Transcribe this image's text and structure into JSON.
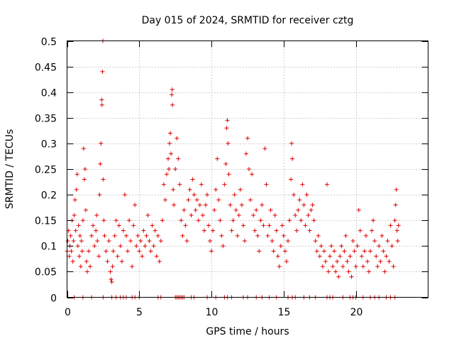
{
  "chart_data": {
    "type": "scatter",
    "title": "Day 015 of 2024, SRMTID for receiver cztg",
    "xlabel": "GPS time / hours",
    "ylabel": "SRMTID / TECUs",
    "xlim": [
      0,
      25
    ],
    "ylim": [
      0,
      0.5
    ],
    "xticks": [
      0,
      5,
      10,
      15,
      20
    ],
    "xtick_labels": [
      "0",
      "5",
      "10",
      "15",
      "20"
    ],
    "yticks": [
      0,
      0.05,
      0.1,
      0.15,
      0.2,
      0.25,
      0.3,
      0.35,
      0.4,
      0.45,
      0.5
    ],
    "ytick_labels": [
      "0",
      "0.05",
      "0.1",
      "0.15",
      "0.2",
      "0.25",
      "0.3",
      "0.35",
      "0.4",
      "0.45",
      "0.5"
    ],
    "grid": true,
    "marker": "plus",
    "color": "#e00000",
    "series": [
      {
        "name": "SRMTID",
        "points": [
          [
            0.0,
            0.09
          ],
          [
            0.05,
            0.11
          ],
          [
            0.1,
            0.13
          ],
          [
            0.15,
            0.08
          ],
          [
            0.2,
            0.1
          ],
          [
            0.25,
            0.12
          ],
          [
            0.3,
            0.09
          ],
          [
            0.35,
            0.15
          ],
          [
            0.4,
            0.07
          ],
          [
            0.45,
            0.11
          ],
          [
            0.5,
            0.16
          ],
          [
            0.55,
            0.19
          ],
          [
            0.6,
            0.13
          ],
          [
            0.65,
            0.21
          ],
          [
            0.7,
            0.24
          ],
          [
            0.75,
            0.1
          ],
          [
            0.8,
            0.14
          ],
          [
            0.85,
            0.08
          ],
          [
            0.9,
            0.12
          ],
          [
            0.95,
            0.06
          ],
          [
            1.0,
            0.11
          ],
          [
            1.05,
            0.09
          ],
          [
            1.1,
            0.15
          ],
          [
            1.15,
            0.29
          ],
          [
            1.2,
            0.23
          ],
          [
            1.25,
            0.25
          ],
          [
            1.3,
            0.17
          ],
          [
            1.35,
            0.07
          ],
          [
            1.4,
            0.05
          ],
          [
            1.5,
            0.09
          ],
          [
            1.6,
            0.06
          ],
          [
            1.7,
            0.12
          ],
          [
            1.8,
            0.14
          ],
          [
            1.9,
            0.1
          ],
          [
            2.0,
            0.13
          ],
          [
            2.05,
            0.16
          ],
          [
            2.1,
            0.11
          ],
          [
            2.2,
            0.08
          ],
          [
            2.25,
            0.2
          ],
          [
            2.3,
            0.26
          ],
          [
            2.35,
            0.3
          ],
          [
            2.4,
            0.385
          ],
          [
            2.42,
            0.375
          ],
          [
            2.45,
            0.44
          ],
          [
            2.48,
            0.5
          ],
          [
            2.5,
            0.23
          ],
          [
            2.55,
            0.15
          ],
          [
            2.6,
            0.12
          ],
          [
            2.7,
            0.09
          ],
          [
            2.8,
            0.07
          ],
          [
            2.9,
            0.11
          ],
          [
            3.0,
            0.05
          ],
          [
            3.05,
            0.035
          ],
          [
            3.1,
            0.03
          ],
          [
            3.15,
            0.06
          ],
          [
            3.2,
            0.09
          ],
          [
            3.3,
            0.12
          ],
          [
            3.4,
            0.15
          ],
          [
            3.5,
            0.08
          ],
          [
            3.6,
            0.14
          ],
          [
            3.7,
            0.1
          ],
          [
            3.8,
            0.07
          ],
          [
            3.9,
            0.13
          ],
          [
            4.0,
            0.2
          ],
          [
            4.1,
            0.12
          ],
          [
            4.2,
            0.09
          ],
          [
            4.3,
            0.15
          ],
          [
            4.4,
            0.11
          ],
          [
            4.5,
            0.06
          ],
          [
            4.6,
            0.14
          ],
          [
            4.7,
            0.18
          ],
          [
            4.8,
            0.1
          ],
          [
            4.9,
            0.12
          ],
          [
            5.0,
            0.09
          ],
          [
            5.1,
            0.11
          ],
          [
            5.2,
            0.08
          ],
          [
            5.3,
            0.13
          ],
          [
            5.4,
            0.1
          ],
          [
            5.5,
            0.12
          ],
          [
            5.6,
            0.16
          ],
          [
            5.7,
            0.11
          ],
          [
            5.8,
            0.09
          ],
          [
            5.9,
            0.14
          ],
          [
            6.0,
            0.1
          ],
          [
            6.1,
            0.13
          ],
          [
            6.2,
            0.08
          ],
          [
            6.3,
            0.12
          ],
          [
            6.4,
            0.07
          ],
          [
            6.5,
            0.11
          ],
          [
            6.6,
            0.15
          ],
          [
            6.7,
            0.22
          ],
          [
            6.8,
            0.19
          ],
          [
            6.9,
            0.24
          ],
          [
            7.0,
            0.27
          ],
          [
            7.05,
            0.25
          ],
          [
            7.1,
            0.3
          ],
          [
            7.15,
            0.32
          ],
          [
            7.2,
            0.28
          ],
          [
            7.25,
            0.395
          ],
          [
            7.28,
            0.405
          ],
          [
            7.3,
            0.375
          ],
          [
            7.35,
            0.21
          ],
          [
            7.4,
            0.18
          ],
          [
            7.5,
            0.25
          ],
          [
            7.6,
            0.31
          ],
          [
            7.7,
            0.27
          ],
          [
            7.8,
            0.22
          ],
          [
            7.9,
            0.15
          ],
          [
            8.0,
            0.12
          ],
          [
            8.1,
            0.17
          ],
          [
            8.2,
            0.14
          ],
          [
            8.3,
            0.11
          ],
          [
            8.4,
            0.19
          ],
          [
            8.5,
            0.21
          ],
          [
            8.6,
            0.16
          ],
          [
            8.7,
            0.23
          ],
          [
            8.8,
            0.2
          ],
          [
            8.9,
            0.17
          ],
          [
            9.0,
            0.19
          ],
          [
            9.1,
            0.15
          ],
          [
            9.2,
            0.18
          ],
          [
            9.3,
            0.22
          ],
          [
            9.4,
            0.16
          ],
          [
            9.5,
            0.13
          ],
          [
            9.6,
            0.18
          ],
          [
            9.7,
            0.2
          ],
          [
            9.8,
            0.14
          ],
          [
            9.9,
            0.11
          ],
          [
            10.0,
            0.09
          ],
          [
            10.1,
            0.13
          ],
          [
            10.2,
            0.17
          ],
          [
            10.3,
            0.21
          ],
          [
            10.4,
            0.27
          ],
          [
            10.5,
            0.19
          ],
          [
            10.6,
            0.15
          ],
          [
            10.7,
            0.12
          ],
          [
            10.8,
            0.1
          ],
          [
            10.9,
            0.22
          ],
          [
            11.0,
            0.26
          ],
          [
            11.05,
            0.33
          ],
          [
            11.1,
            0.345
          ],
          [
            11.15,
            0.3
          ],
          [
            11.2,
            0.24
          ],
          [
            11.3,
            0.18
          ],
          [
            11.4,
            0.13
          ],
          [
            11.5,
            0.15
          ],
          [
            11.6,
            0.2
          ],
          [
            11.7,
            0.17
          ],
          [
            11.8,
            0.12
          ],
          [
            11.9,
            0.16
          ],
          [
            12.0,
            0.21
          ],
          [
            12.1,
            0.18
          ],
          [
            12.2,
            0.14
          ],
          [
            12.3,
            0.11
          ],
          [
            12.4,
            0.28
          ],
          [
            12.5,
            0.31
          ],
          [
            12.6,
            0.25
          ],
          [
            12.7,
            0.19
          ],
          [
            12.8,
            0.24
          ],
          [
            12.9,
            0.16
          ],
          [
            13.0,
            0.13
          ],
          [
            13.1,
            0.17
          ],
          [
            13.2,
            0.12
          ],
          [
            13.3,
            0.09
          ],
          [
            13.4,
            0.15
          ],
          [
            13.5,
            0.18
          ],
          [
            13.6,
            0.14
          ],
          [
            13.7,
            0.29
          ],
          [
            13.8,
            0.22
          ],
          [
            13.9,
            0.12
          ],
          [
            14.0,
            0.14
          ],
          [
            14.1,
            0.17
          ],
          [
            14.2,
            0.11
          ],
          [
            14.3,
            0.09
          ],
          [
            14.4,
            0.16
          ],
          [
            14.5,
            0.13
          ],
          [
            14.6,
            0.08
          ],
          [
            14.7,
            0.06
          ],
          [
            14.8,
            0.1
          ],
          [
            14.9,
            0.14
          ],
          [
            15.0,
            0.12
          ],
          [
            15.1,
            0.09
          ],
          [
            15.2,
            0.07
          ],
          [
            15.3,
            0.11
          ],
          [
            15.4,
            0.15
          ],
          [
            15.5,
            0.23
          ],
          [
            15.55,
            0.3
          ],
          [
            15.6,
            0.27
          ],
          [
            15.7,
            0.2
          ],
          [
            15.8,
            0.16
          ],
          [
            15.9,
            0.13
          ],
          [
            16.0,
            0.17
          ],
          [
            16.1,
            0.19
          ],
          [
            16.2,
            0.15
          ],
          [
            16.3,
            0.22
          ],
          [
            16.4,
            0.18
          ],
          [
            16.5,
            0.14
          ],
          [
            16.6,
            0.2
          ],
          [
            16.7,
            0.16
          ],
          [
            16.8,
            0.13
          ],
          [
            16.9,
            0.17
          ],
          [
            17.0,
            0.18
          ],
          [
            17.1,
            0.15
          ],
          [
            17.2,
            0.11
          ],
          [
            17.3,
            0.09
          ],
          [
            17.4,
            0.12
          ],
          [
            17.5,
            0.08
          ],
          [
            17.6,
            0.1
          ],
          [
            17.7,
            0.06
          ],
          [
            17.8,
            0.09
          ],
          [
            17.9,
            0.07
          ],
          [
            18.0,
            0.22
          ],
          [
            18.1,
            0.05
          ],
          [
            18.2,
            0.08
          ],
          [
            18.3,
            0.1
          ],
          [
            18.4,
            0.06
          ],
          [
            18.5,
            0.09
          ],
          [
            18.6,
            0.05
          ],
          [
            18.7,
            0.07
          ],
          [
            18.8,
            0.04
          ],
          [
            18.9,
            0.08
          ],
          [
            19.0,
            0.1
          ],
          [
            19.1,
            0.06
          ],
          [
            19.2,
            0.09
          ],
          [
            19.3,
            0.12
          ],
          [
            19.4,
            0.07
          ],
          [
            19.5,
            0.05
          ],
          [
            19.6,
            0.08
          ],
          [
            19.7,
            0.04
          ],
          [
            19.8,
            0.11
          ],
          [
            19.9,
            0.09
          ],
          [
            20.0,
            0.06
          ],
          [
            20.1,
            0.1
          ],
          [
            20.2,
            0.17
          ],
          [
            20.3,
            0.13
          ],
          [
            20.4,
            0.08
          ],
          [
            20.5,
            0.06
          ],
          [
            20.6,
            0.09
          ],
          [
            20.7,
            0.12
          ],
          [
            20.8,
            0.07
          ],
          [
            20.9,
            0.05
          ],
          [
            21.0,
            0.09
          ],
          [
            21.1,
            0.13
          ],
          [
            21.2,
            0.15
          ],
          [
            21.3,
            0.11
          ],
          [
            21.4,
            0.08
          ],
          [
            21.5,
            0.06
          ],
          [
            21.6,
            0.1
          ],
          [
            21.7,
            0.07
          ],
          [
            21.8,
            0.12
          ],
          [
            21.9,
            0.09
          ],
          [
            22.0,
            0.05
          ],
          [
            22.1,
            0.08
          ],
          [
            22.2,
            0.11
          ],
          [
            22.3,
            0.07
          ],
          [
            22.4,
            0.14
          ],
          [
            22.5,
            0.1
          ],
          [
            22.6,
            0.06
          ],
          [
            22.7,
            0.15
          ],
          [
            22.75,
            0.18
          ],
          [
            22.8,
            0.21
          ],
          [
            22.85,
            0.13
          ],
          [
            22.9,
            0.11
          ],
          [
            22.95,
            0.14
          ],
          [
            0.5,
            0.0
          ],
          [
            1.1,
            0.0
          ],
          [
            1.7,
            0.0
          ],
          [
            2.5,
            0.0
          ],
          [
            3.1,
            0.0
          ],
          [
            3.4,
            0.0
          ],
          [
            3.7,
            0.0
          ],
          [
            3.9,
            0.0
          ],
          [
            4.1,
            0.0
          ],
          [
            4.5,
            0.0
          ],
          [
            4.7,
            0.0
          ],
          [
            5.0,
            0.0
          ],
          [
            6.3,
            0.0
          ],
          [
            6.5,
            0.0
          ],
          [
            7.5,
            0.0
          ],
          [
            7.6,
            0.0
          ],
          [
            7.7,
            0.0
          ],
          [
            7.8,
            0.0
          ],
          [
            7.9,
            0.0
          ],
          [
            8.0,
            0.0
          ],
          [
            8.1,
            0.0
          ],
          [
            8.6,
            0.0
          ],
          [
            8.8,
            0.0
          ],
          [
            9.7,
            0.0
          ],
          [
            10.3,
            0.0
          ],
          [
            10.9,
            0.0
          ],
          [
            11.1,
            0.0
          ],
          [
            11.4,
            0.0
          ],
          [
            12.2,
            0.0
          ],
          [
            12.5,
            0.0
          ],
          [
            13.1,
            0.0
          ],
          [
            13.5,
            0.0
          ],
          [
            14.0,
            0.0
          ],
          [
            14.5,
            0.0
          ],
          [
            15.3,
            0.0
          ],
          [
            15.6,
            0.0
          ],
          [
            15.8,
            0.0
          ],
          [
            16.4,
            0.0
          ],
          [
            16.8,
            0.0
          ],
          [
            17.2,
            0.0
          ],
          [
            18.0,
            0.0
          ],
          [
            18.2,
            0.0
          ],
          [
            18.4,
            0.0
          ],
          [
            19.1,
            0.0
          ],
          [
            19.6,
            0.0
          ],
          [
            19.8,
            0.0
          ],
          [
            20.0,
            0.0
          ],
          [
            20.5,
            0.0
          ],
          [
            21.0,
            0.0
          ],
          [
            21.3,
            0.0
          ],
          [
            21.6,
            0.0
          ],
          [
            22.1,
            0.0
          ],
          [
            22.4,
            0.0
          ],
          [
            22.7,
            0.0
          ]
        ]
      }
    ]
  }
}
